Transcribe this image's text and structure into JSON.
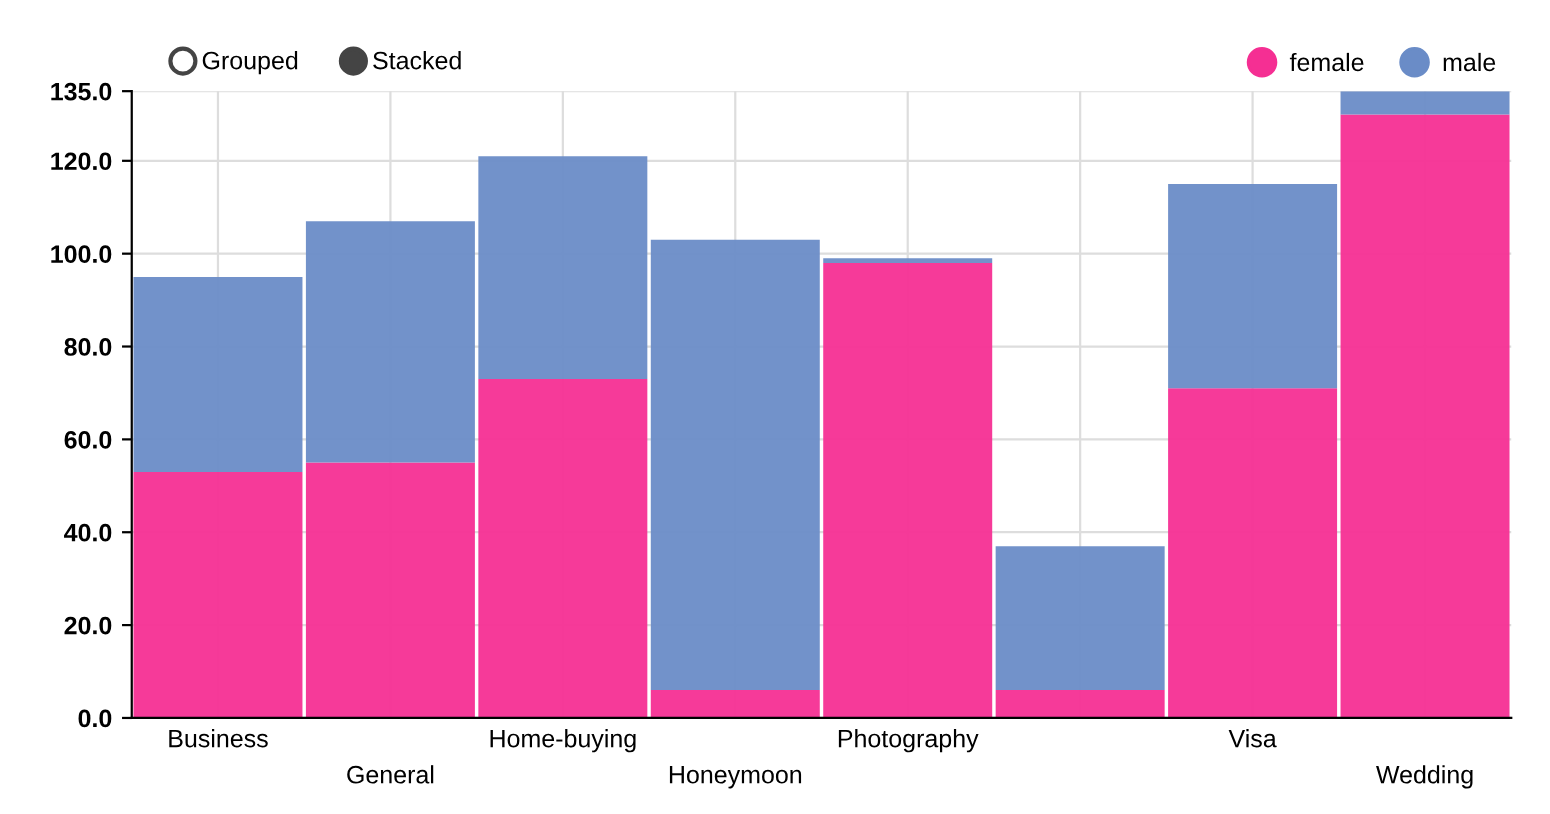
{
  "chart_data": {
    "type": "bar",
    "stacked": true,
    "categories": [
      "Business",
      "General",
      "Home-buying",
      "Honeymoon",
      "Photography",
      null,
      "Visa",
      "Wedding"
    ],
    "series": [
      {
        "name": "female",
        "color": "#f52f93",
        "values": [
          53,
          55,
          73,
          6,
          98,
          6,
          71,
          130
        ]
      },
      {
        "name": "male",
        "color": "#6a8cc7",
        "values": [
          42,
          52,
          48,
          97,
          1,
          31,
          44,
          5
        ]
      }
    ],
    "ylim": [
      0,
      135
    ],
    "yticks": [
      {
        "value": 0,
        "label": "0.0"
      },
      {
        "value": 20,
        "label": "20.0"
      },
      {
        "value": 40,
        "label": "40.0"
      },
      {
        "value": 60,
        "label": "60.0"
      },
      {
        "value": 80,
        "label": "80.0"
      },
      {
        "value": 100,
        "label": "100.0"
      },
      {
        "value": 120,
        "label": "120.0"
      },
      {
        "value": 135,
        "label": "135.0"
      }
    ],
    "grid": true,
    "legend": "top right",
    "annotations": [
      "Grouped",
      "Stacked"
    ]
  }
}
